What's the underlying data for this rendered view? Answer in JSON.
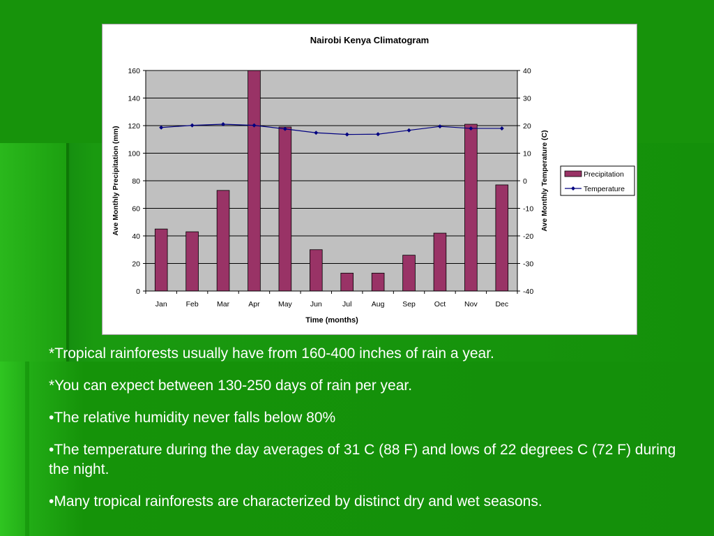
{
  "colors": {
    "bar": "#993366",
    "line": "#000080",
    "plot_bg": "#c0c0c0"
  },
  "chart_data": {
    "type": "bar",
    "title": "Nairobi Kenya Climatogram",
    "xlabel": "Time (months)",
    "ylabel": "Ave Monthly Precipitation (mm)",
    "y2label": "Ave Monthly Temperature (C)",
    "categories": [
      "Jan",
      "Feb",
      "Mar",
      "Apr",
      "May",
      "Jun",
      "Jul",
      "Aug",
      "Sep",
      "Oct",
      "Nov",
      "Dec"
    ],
    "ylim": [
      0,
      160
    ],
    "yticks": [
      0,
      20,
      40,
      60,
      80,
      100,
      120,
      140,
      160
    ],
    "y2lim": [
      -40,
      40
    ],
    "y2ticks": [
      -40,
      -30,
      -20,
      -10,
      0,
      10,
      20,
      30,
      40
    ],
    "grid": true,
    "legend_position": "right",
    "series": [
      {
        "name": "Precipitation",
        "type": "bar",
        "axis": "left",
        "values": [
          45,
          43,
          73,
          160,
          119,
          30,
          13,
          13,
          26,
          42,
          121,
          77
        ]
      },
      {
        "name": "Temperature",
        "type": "line",
        "axis": "right",
        "values": [
          19.3,
          20.1,
          20.5,
          20.1,
          18.8,
          17.4,
          16.8,
          16.9,
          18.3,
          19.7,
          19.0,
          19.0
        ]
      }
    ]
  },
  "notes": [
    "*Tropical rainforests usually have from 160-400 inches of rain a year.",
    "*You can expect between 130-250 days of rain per year.",
    "•The relative humidity never falls below 80%",
    "•The temperature during the day averages of 31 C (88 F) and lows of 22 degrees C (72 F) during the night.",
    "•Many tropical rainforests are characterized by distinct dry and wet seasons."
  ]
}
